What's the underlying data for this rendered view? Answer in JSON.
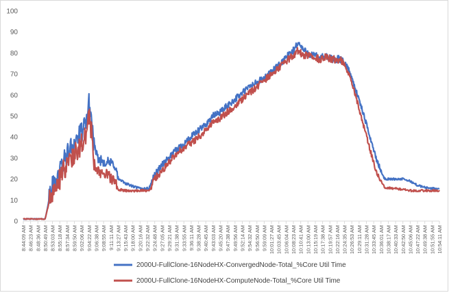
{
  "chart_data": {
    "type": "line",
    "title": "",
    "xlabel": "",
    "ylabel": "",
    "ylim": [
      0,
      100
    ],
    "yticks": [
      0,
      10,
      20,
      30,
      40,
      50,
      60,
      70,
      80,
      90,
      100
    ],
    "grid": false,
    "legend_position": "bottom",
    "x_tick_labels": [
      "8:44:09 AM",
      "8:46:23 AM",
      "8:48:36 AM",
      "8:50:49 AM",
      "8:53:03 AM",
      "8:55:18 AM",
      "8:57:34 AM",
      "8:59:50 AM",
      "9:02:06 AM",
      "9:04:22 AM",
      "9:06:38 AM",
      "9:08:55 AM",
      "9:11:11 AM",
      "9:13:27 AM",
      "9:15:43 AM",
      "9:18:00 AM",
      "9:20:16 AM",
      "9:22:32 AM",
      "9:24:48 AM",
      "9:27:05 AM",
      "9:29:21 AM",
      "9:31:38 AM",
      "9:33:55 AM",
      "9:36:11 AM",
      "9:38:28 AM",
      "9:40:45 AM",
      "9:43:03 AM",
      "9:45:20 AM",
      "9:47:38 AM",
      "9:49:56 AM",
      "9:52:14 AM",
      "9:54:32 AM",
      "9:56:50 AM",
      "9:59:09 AM",
      "10:01:27 AM",
      "10:03:45 AM",
      "10:06:04 AM",
      "10:08:23 AM",
      "10:10:41 AM",
      "10:13:00 AM",
      "10:15:19 AM",
      "10:17:38 AM",
      "10:19:57 AM",
      "10:22:16 AM",
      "10:24:35 AM",
      "10:26:53 AM",
      "10:29:11 AM",
      "10:31:28 AM",
      "10:33:45 AM",
      "10:36:01 AM",
      "10:38:17 AM",
      "10:40:33 AM",
      "10:42:50 AM",
      "10:45:06 AM",
      "10:47:22 AM",
      "10:49:38 AM",
      "10:51:55 AM",
      "10:54:11 AM"
    ],
    "series": [
      {
        "name": "2000U-FullClone-16NodeHX-ConvergedNode-Total_%Core Util Time",
        "color": "#4472c4",
        "points": [
          [
            0,
            1
          ],
          [
            3,
            1
          ],
          [
            3.8,
            15
          ],
          [
            4.5,
            20
          ],
          [
            5.5,
            28
          ],
          [
            6.5,
            35
          ],
          [
            7.5,
            40
          ],
          [
            8.5,
            45
          ],
          [
            9,
            56
          ],
          [
            9.4,
            47
          ],
          [
            9.8,
            32
          ],
          [
            10.5,
            29
          ],
          [
            11.5,
            28
          ],
          [
            12.5,
            27
          ],
          [
            13,
            20
          ],
          [
            14,
            18
          ],
          [
            15,
            16.5
          ],
          [
            16,
            15.5
          ],
          [
            17.2,
            15.5
          ],
          [
            17.5,
            18
          ],
          [
            18,
            22
          ],
          [
            19,
            27
          ],
          [
            20,
            30
          ],
          [
            21,
            34
          ],
          [
            22,
            37
          ],
          [
            23,
            40
          ],
          [
            24,
            43
          ],
          [
            25,
            46
          ],
          [
            26,
            50
          ],
          [
            27,
            52
          ],
          [
            28,
            55
          ],
          [
            29,
            58
          ],
          [
            30,
            61
          ],
          [
            31,
            64
          ],
          [
            32,
            66
          ],
          [
            33,
            68
          ],
          [
            34,
            71
          ],
          [
            35,
            74
          ],
          [
            36,
            78
          ],
          [
            37,
            81
          ],
          [
            37.6,
            85
          ],
          [
            38.5,
            81
          ],
          [
            39.5,
            79
          ],
          [
            40.5,
            78
          ],
          [
            41.5,
            78
          ],
          [
            42.5,
            77
          ],
          [
            43.5,
            77
          ],
          [
            44.5,
            73
          ],
          [
            45.5,
            63
          ],
          [
            46.5,
            52
          ],
          [
            47.5,
            40
          ],
          [
            48.5,
            28
          ],
          [
            49.5,
            20
          ],
          [
            51,
            20
          ],
          [
            52,
            20
          ],
          [
            53,
            19
          ],
          [
            54,
            17
          ],
          [
            55,
            16
          ],
          [
            56,
            15.5
          ],
          [
            57,
            15.5
          ]
        ]
      },
      {
        "name": "2000U-FullClone-16NodeHX-ComputeNode-Total_%Core Util Time",
        "color": "#c0504d",
        "points": [
          [
            0,
            1
          ],
          [
            3,
            1
          ],
          [
            3.8,
            13
          ],
          [
            4.5,
            16
          ],
          [
            5.5,
            24
          ],
          [
            6.5,
            30
          ],
          [
            7.5,
            34
          ],
          [
            8.5,
            40
          ],
          [
            9,
            50
          ],
          [
            9.4,
            40
          ],
          [
            9.8,
            25
          ],
          [
            10.5,
            23
          ],
          [
            11.5,
            22
          ],
          [
            12.5,
            19
          ],
          [
            13,
            15
          ],
          [
            14,
            14.5
          ],
          [
            15,
            14.5
          ],
          [
            16,
            14.5
          ],
          [
            17.2,
            14.5
          ],
          [
            17.5,
            16
          ],
          [
            18,
            20
          ],
          [
            19,
            24
          ],
          [
            20,
            28
          ],
          [
            21,
            32
          ],
          [
            22,
            35
          ],
          [
            23,
            37
          ],
          [
            24,
            40
          ],
          [
            25,
            43
          ],
          [
            26,
            47
          ],
          [
            27,
            49
          ],
          [
            28,
            52
          ],
          [
            29,
            55
          ],
          [
            30,
            58
          ],
          [
            31,
            61
          ],
          [
            32,
            64
          ],
          [
            33,
            67
          ],
          [
            34,
            70
          ],
          [
            35,
            73
          ],
          [
            36,
            76
          ],
          [
            37,
            79
          ],
          [
            37.6,
            81
          ],
          [
            38.5,
            79
          ],
          [
            39.5,
            79
          ],
          [
            40.5,
            77
          ],
          [
            41.5,
            78
          ],
          [
            42.5,
            77
          ],
          [
            43.5,
            77
          ],
          [
            44.5,
            71
          ],
          [
            45.5,
            60
          ],
          [
            46.5,
            47
          ],
          [
            47.5,
            34
          ],
          [
            48.5,
            22
          ],
          [
            49.5,
            16
          ],
          [
            51,
            15.5
          ],
          [
            52,
            15
          ],
          [
            53,
            14.5
          ],
          [
            54,
            14.5
          ],
          [
            55,
            14.5
          ],
          [
            56,
            14.5
          ],
          [
            57,
            14.5
          ]
        ]
      }
    ]
  }
}
